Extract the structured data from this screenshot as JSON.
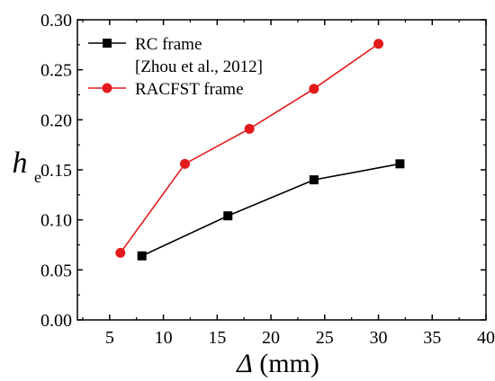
{
  "chart_data": {
    "type": "line",
    "title": "",
    "xlabel": {
      "symbol": "Δ",
      "unit": " (mm)"
    },
    "ylabel": {
      "main": "h",
      "sub": "e"
    },
    "xlim": [
      2,
      40
    ],
    "ylim": [
      0.0,
      0.3
    ],
    "xticks": [
      5,
      10,
      15,
      20,
      25,
      30,
      35,
      40
    ],
    "yticks": [
      0.0,
      0.05,
      0.1,
      0.15,
      0.2,
      0.25,
      0.3
    ],
    "ytick_labels": [
      "0.00",
      "0.05",
      "0.10",
      "0.15",
      "0.20",
      "0.25",
      "0.30"
    ],
    "xtick_labels": [
      "5",
      "10",
      "15",
      "20",
      "25",
      "30",
      "35",
      "40"
    ],
    "grid": false,
    "legend_position": "top-left",
    "series": [
      {
        "name": "RC frame",
        "name_line2": "[Zhou et al., 2012]",
        "color": "#000000",
        "marker": "square",
        "x": [
          8,
          16,
          24,
          32
        ],
        "y": [
          0.064,
          0.104,
          0.14,
          0.156
        ]
      },
      {
        "name": "RACFST frame",
        "color": "#e31a1c",
        "marker": "circle",
        "x": [
          6,
          12,
          18,
          24,
          30
        ],
        "y": [
          0.067,
          0.156,
          0.191,
          0.231,
          0.276
        ]
      }
    ]
  }
}
